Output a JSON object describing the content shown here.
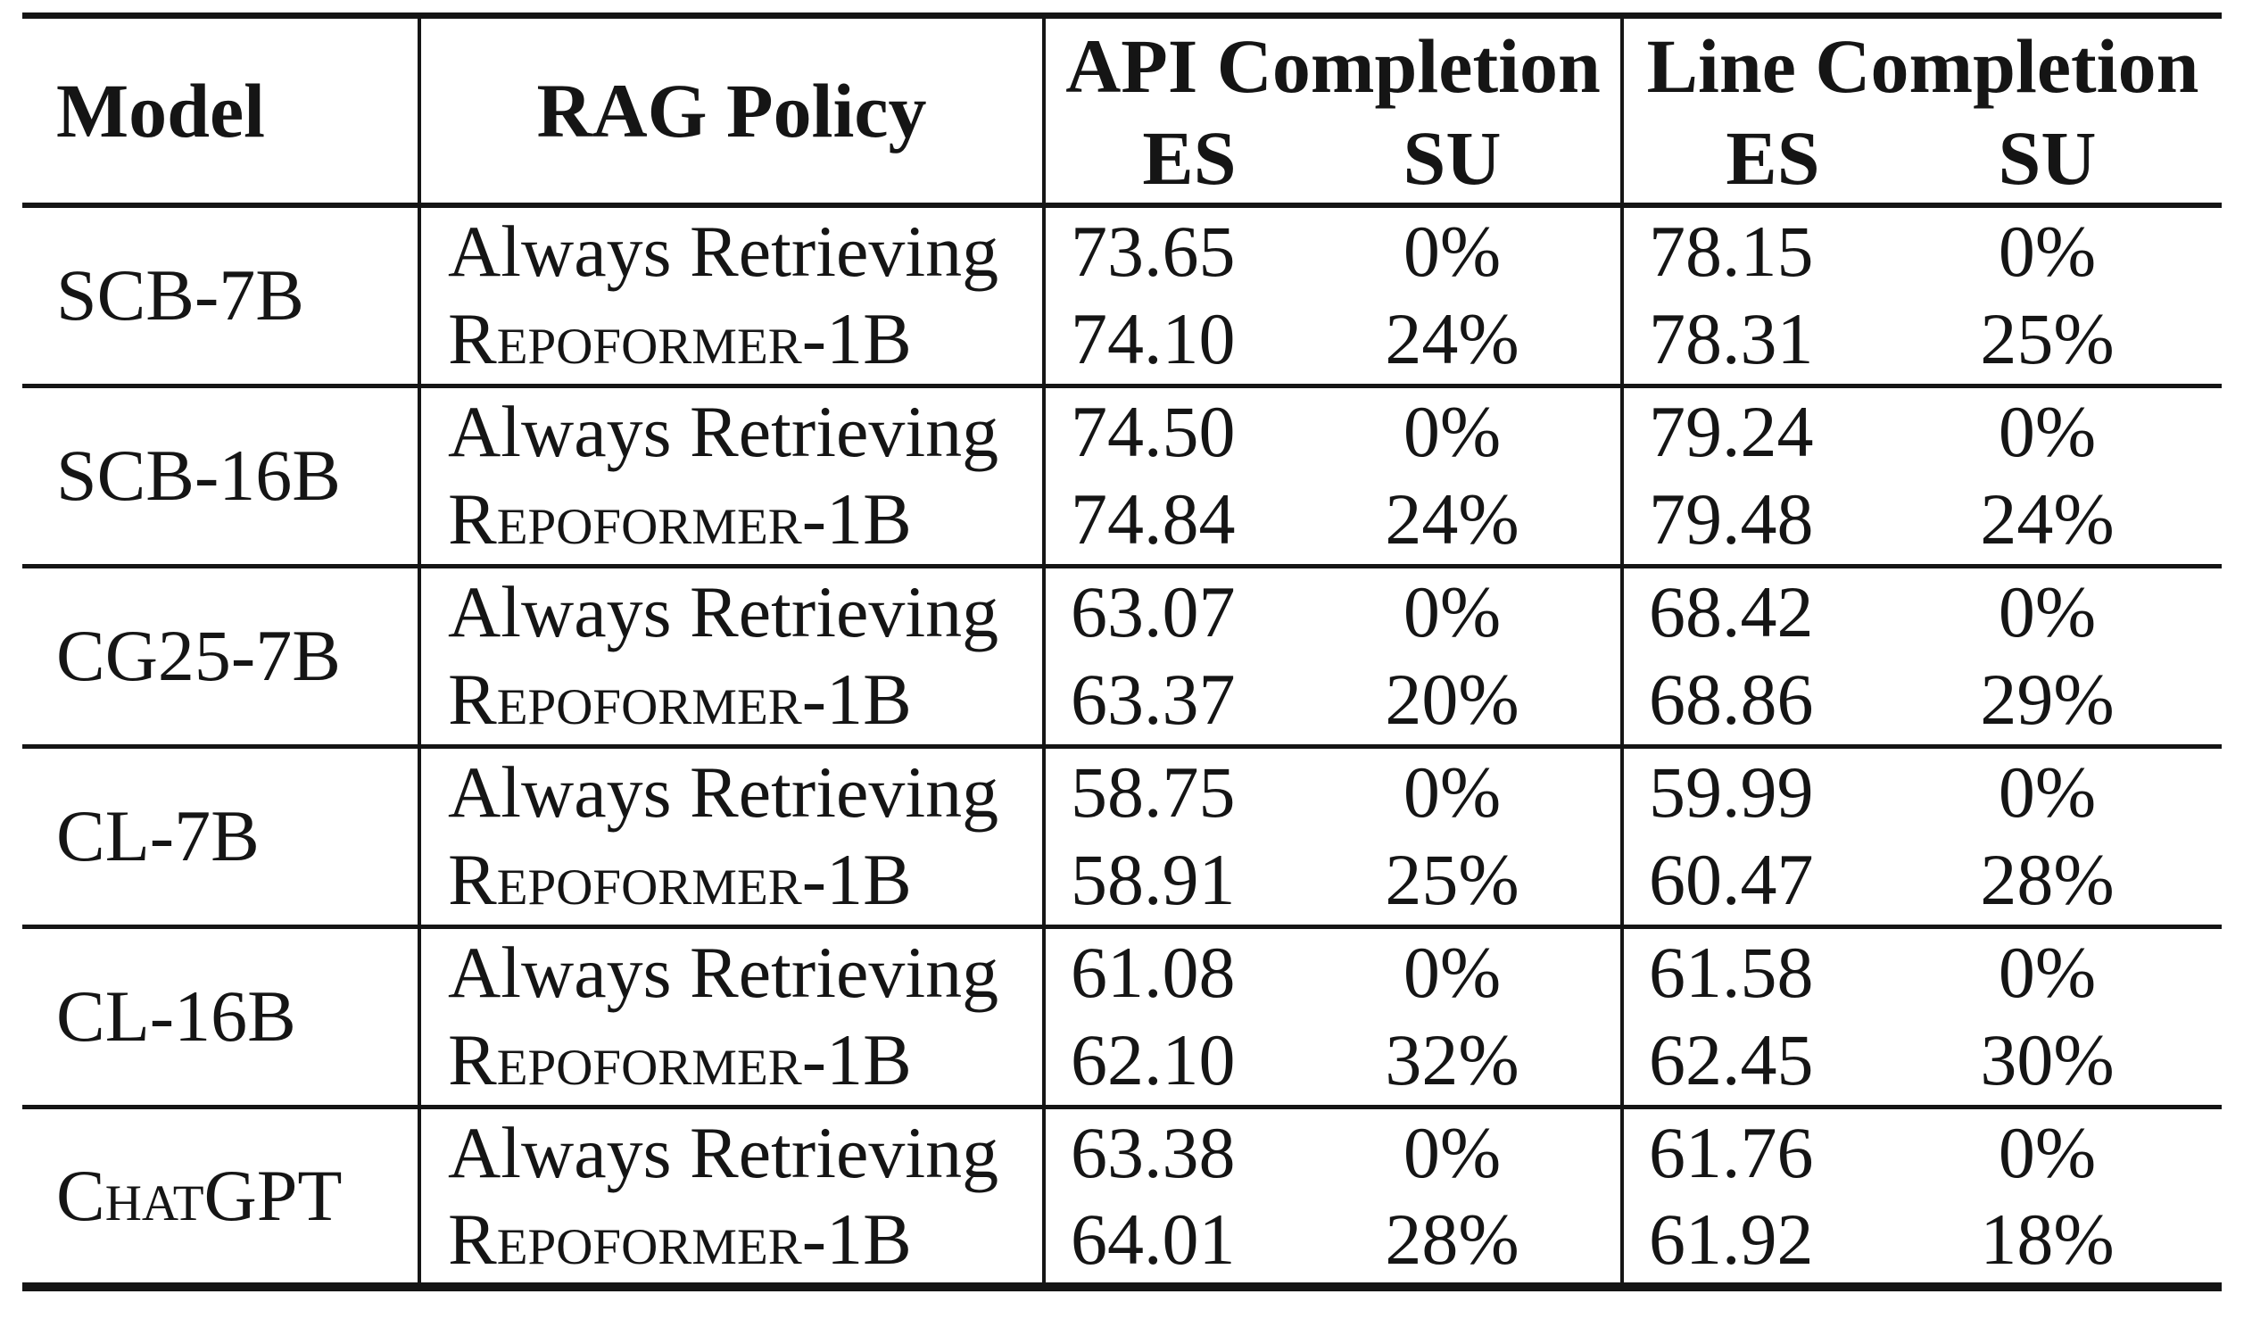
{
  "colors": {
    "text": "#151515",
    "background": "#ffffff",
    "rule": "#151515"
  },
  "table": {
    "headers": {
      "model": "Model",
      "rag_policy": "RAG Policy",
      "api_completion": "API Completion",
      "line_completion": "Line Completion",
      "es": "ES",
      "su": "SU"
    },
    "groups": [
      {
        "model": "SCB-7B",
        "rows": [
          {
            "policy": "Always Retrieving",
            "api_es": "73.65",
            "api_su": "0%",
            "line_es": "78.15",
            "line_su": "0%"
          },
          {
            "policy": "Repoformer-1B",
            "api_es": "74.10",
            "api_su": "24%",
            "line_es": "78.31",
            "line_su": "25%"
          }
        ]
      },
      {
        "model": "SCB-16B",
        "rows": [
          {
            "policy": "Always Retrieving",
            "api_es": "74.50",
            "api_su": "0%",
            "line_es": "79.24",
            "line_su": "0%"
          },
          {
            "policy": "Repoformer-1B",
            "api_es": "74.84",
            "api_su": "24%",
            "line_es": "79.48",
            "line_su": "24%"
          }
        ]
      },
      {
        "model": "CG25-7B",
        "rows": [
          {
            "policy": "Always Retrieving",
            "api_es": "63.07",
            "api_su": "0%",
            "line_es": "68.42",
            "line_su": "0%"
          },
          {
            "policy": "Repoformer-1B",
            "api_es": "63.37",
            "api_su": "20%",
            "line_es": "68.86",
            "line_su": "29%"
          }
        ]
      },
      {
        "model": "CL-7B",
        "rows": [
          {
            "policy": "Always Retrieving",
            "api_es": "58.75",
            "api_su": "0%",
            "line_es": "59.99",
            "line_su": "0%"
          },
          {
            "policy": "Repoformer-1B",
            "api_es": "58.91",
            "api_su": "25%",
            "line_es": "60.47",
            "line_su": "28%"
          }
        ]
      },
      {
        "model": "CL-16B",
        "rows": [
          {
            "policy": "Always Retrieving",
            "api_es": "61.08",
            "api_su": "0%",
            "line_es": "61.58",
            "line_su": "0%"
          },
          {
            "policy": "Repoformer-1B",
            "api_es": "62.10",
            "api_su": "32%",
            "line_es": "62.45",
            "line_su": "30%"
          }
        ]
      },
      {
        "model": "ChatGPT",
        "rows": [
          {
            "policy": "Always Retrieving",
            "api_es": "63.38",
            "api_su": "0%",
            "line_es": "61.76",
            "line_su": "0%"
          },
          {
            "policy": "Repoformer-1B",
            "api_es": "64.01",
            "api_su": "28%",
            "line_es": "61.92",
            "line_su": "18%"
          }
        ]
      }
    ]
  }
}
